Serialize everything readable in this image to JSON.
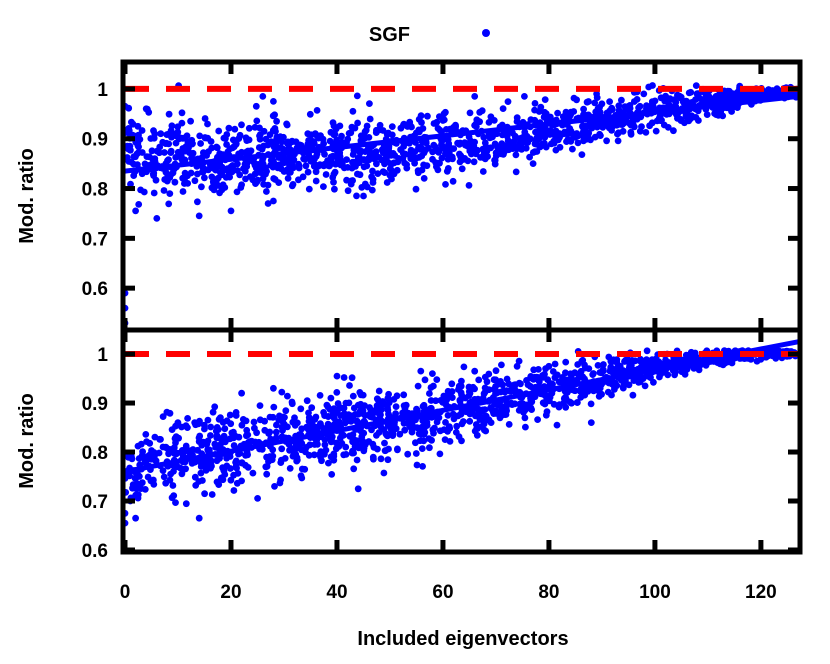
{
  "legend": {
    "label": "SGF",
    "color": "#0000ff"
  },
  "chart_data": [
    {
      "type": "scatter",
      "panel": "top",
      "ylabel": "Mod. ratio",
      "xlabel": "",
      "xlim": [
        0,
        127
      ],
      "ylim": [
        0.52,
        1.05
      ],
      "xticks": [
        0,
        20,
        40,
        60,
        80,
        100,
        120
      ],
      "yticks": [
        0.6,
        0.7,
        0.8,
        0.9,
        1
      ],
      "ytick_labels": [
        "0.6",
        "0.7",
        "0.8",
        "0.9",
        "1"
      ],
      "grid": false,
      "series": [
        {
          "name": "SGF",
          "color": "#0000ff",
          "marker": "dot",
          "trend": [
            [
              0,
              0.875
            ],
            [
              10,
              0.862
            ],
            [
              20,
              0.858
            ],
            [
              30,
              0.86
            ],
            [
              40,
              0.868
            ],
            [
              50,
              0.875
            ],
            [
              60,
              0.888
            ],
            [
              70,
              0.9
            ],
            [
              80,
              0.915
            ],
            [
              90,
              0.935
            ],
            [
              100,
              0.955
            ],
            [
              110,
              0.975
            ],
            [
              120,
              0.99
            ],
            [
              127,
              0.995
            ]
          ],
          "spread": [
            [
              0,
              0.05
            ],
            [
              20,
              0.05
            ],
            [
              40,
              0.045
            ],
            [
              60,
              0.04
            ],
            [
              80,
              0.03
            ],
            [
              100,
              0.025
            ],
            [
              120,
              0.01
            ],
            [
              127,
              0.007
            ]
          ],
          "n_points": 1500,
          "outliers": [
            [
              0,
              0.53
            ],
            [
              0,
              0.56
            ],
            [
              0,
              0.59
            ],
            [
              2,
              0.755
            ],
            [
              6,
              0.74
            ],
            [
              14,
              0.745
            ],
            [
              20,
              0.755
            ],
            [
              27,
              0.77
            ],
            [
              28,
              0.775
            ],
            [
              45,
              0.785
            ],
            [
              0,
              0.965
            ],
            [
              4,
              0.96
            ],
            [
              28,
              0.975
            ],
            [
              26,
              0.985
            ],
            [
              43,
              0.955
            ],
            [
              66,
              0.985
            ],
            [
              90,
              0.97
            ]
          ]
        },
        {
          "name": "fit",
          "color": "#0000ff",
          "style": "solid",
          "x": [
            0,
            127
          ],
          "y": [
            0.835,
            0.985
          ]
        },
        {
          "name": "reference",
          "color": "#ff0000",
          "style": "dashed",
          "x": [
            0,
            127
          ],
          "y": [
            1.0,
            1.0
          ]
        }
      ]
    },
    {
      "type": "scatter",
      "panel": "bottom",
      "ylabel": "Mod. ratio",
      "xlabel": "Included eigenvectors",
      "xlim": [
        0,
        127
      ],
      "ylim": [
        0.6,
        1.045
      ],
      "xticks": [
        0,
        20,
        40,
        60,
        80,
        100,
        120
      ],
      "xtick_labels": [
        "0",
        "20",
        "40",
        "60",
        "80",
        "100",
        "120"
      ],
      "yticks": [
        0.6,
        0.7,
        0.8,
        0.9,
        1
      ],
      "ytick_labels": [
        "0.6",
        "0.7",
        "0.8",
        "0.9",
        "1"
      ],
      "grid": false,
      "series": [
        {
          "name": "SGF",
          "color": "#0000ff",
          "marker": "dot",
          "trend": [
            [
              0,
              0.76
            ],
            [
              10,
              0.785
            ],
            [
              20,
              0.805
            ],
            [
              30,
              0.825
            ],
            [
              40,
              0.845
            ],
            [
              50,
              0.86
            ],
            [
              60,
              0.88
            ],
            [
              70,
              0.9
            ],
            [
              80,
              0.925
            ],
            [
              90,
              0.95
            ],
            [
              100,
              0.975
            ],
            [
              110,
              0.99
            ],
            [
              120,
              1.0
            ],
            [
              127,
              1.0
            ]
          ],
          "spread": [
            [
              0,
              0.05
            ],
            [
              20,
              0.05
            ],
            [
              40,
              0.05
            ],
            [
              60,
              0.045
            ],
            [
              80,
              0.035
            ],
            [
              100,
              0.02
            ],
            [
              110,
              0.01
            ],
            [
              127,
              0.005
            ]
          ],
          "n_points": 1500,
          "outliers": [
            [
              0,
              0.655
            ],
            [
              0,
              0.675
            ],
            [
              1,
              0.7
            ],
            [
              2,
              0.665
            ],
            [
              14,
              0.665
            ],
            [
              22,
              0.92
            ],
            [
              28,
              0.93
            ],
            [
              40,
              0.955
            ],
            [
              44,
              0.725
            ],
            [
              58,
              0.96
            ],
            [
              66,
              0.965
            ],
            [
              74,
              0.975
            ],
            [
              80,
              0.975
            ],
            [
              88,
              0.86
            ]
          ]
        },
        {
          "name": "fit",
          "color": "#0000ff",
          "style": "solid",
          "x": [
            0,
            127
          ],
          "y": [
            0.76,
            1.025
          ]
        },
        {
          "name": "reference",
          "color": "#ff0000",
          "style": "dashed",
          "x": [
            0,
            127
          ],
          "y": [
            1.0,
            1.0
          ]
        }
      ]
    }
  ]
}
